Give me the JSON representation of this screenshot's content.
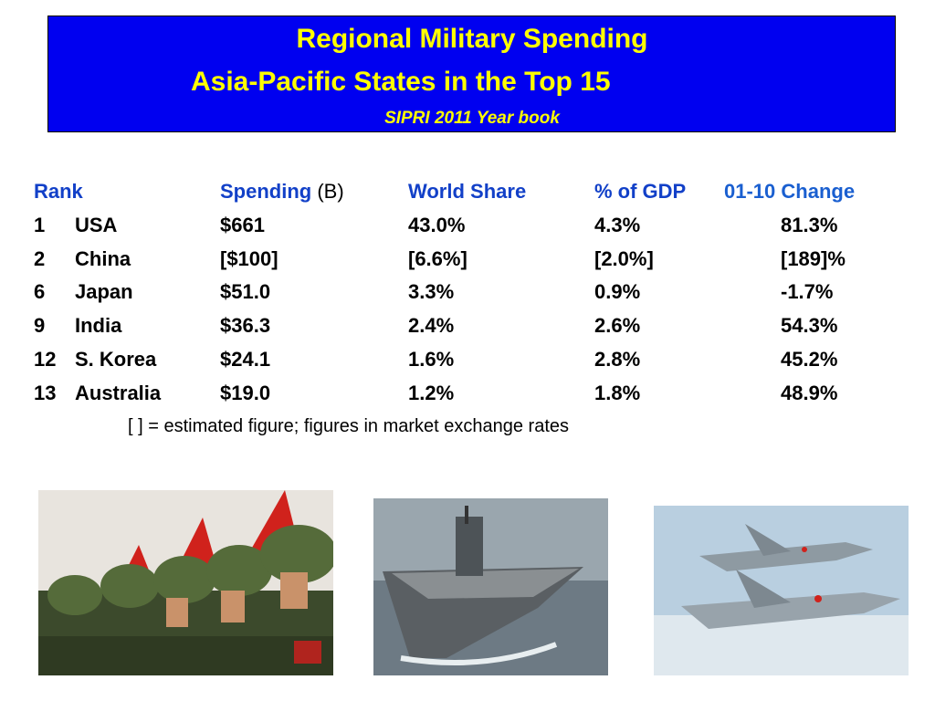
{
  "header": {
    "title": "Regional Military Spending",
    "subtitle": "Asia-Pacific States in the Top 15",
    "source": "SIPRI 2011 Year book"
  },
  "table": {
    "columns": [
      {
        "label": "Rank"
      },
      {
        "label": "Spending",
        "unit": "(B)"
      },
      {
        "label": "World Share"
      },
      {
        "label": "% of GDP"
      },
      {
        "label": "01-10 Change"
      }
    ],
    "rows": [
      [
        "1",
        "USA",
        "$661",
        "43.0%",
        "4.3%",
        "81.3%"
      ],
      [
        "2",
        "China",
        "[$100]",
        "[6.6%]",
        "[2.0%]",
        "[189]%"
      ],
      [
        "6",
        "Japan",
        "$51.0",
        "3.3%",
        "0.9%",
        "-1.7%"
      ],
      [
        "9",
        "India",
        "$36.3",
        "2.4%",
        "2.6%",
        "54.3%"
      ],
      [
        "12",
        "S. Korea",
        "$24.1",
        "1.6%",
        "2.8%",
        "45.2%"
      ],
      [
        "13",
        "Australia",
        "$19.0",
        "1.2%",
        "1.8%",
        "48.9%"
      ]
    ]
  },
  "note": "[ ] = estimated figure;  figures in market exchange rates"
}
